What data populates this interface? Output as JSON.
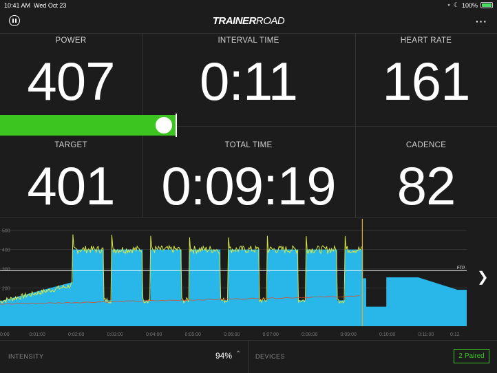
{
  "status_bar": {
    "time": "10:41 AM",
    "date": "Wed Oct 23",
    "battery": "100%"
  },
  "header": {
    "logo_bold": "TRAINER",
    "logo_light": "ROAD"
  },
  "metrics": {
    "power": {
      "label": "POWER",
      "value": "407"
    },
    "interval_time": {
      "label": "INTERVAL TIME",
      "value": "0:11"
    },
    "heart_rate": {
      "label": "HEART RATE",
      "value": "161"
    },
    "target": {
      "label": "TARGET",
      "value": "401"
    },
    "total_time": {
      "label": "TOTAL TIME",
      "value": "0:09:19"
    },
    "cadence": {
      "label": "CADENCE",
      "value": "82"
    }
  },
  "chart_data": {
    "type": "area",
    "y_ticks": [
      "500",
      "400",
      "300",
      "200"
    ],
    "x_ticks": [
      "0:00",
      "0:01:00",
      "0:02:00",
      "0:03:00",
      "0:04:00",
      "0:05:00",
      "0:06:00",
      "0:07:00",
      "0:08:00",
      "0:09:00",
      "0:10:00",
      "0:11:00",
      "0:12"
    ],
    "ftp_label": "FTP",
    "ftp_value": 290,
    "ylim": [
      0,
      560
    ],
    "xlim": [
      0,
      720
    ],
    "current_time_sec": 559,
    "colors": {
      "target": "#29b6e8",
      "power": "#d8e843",
      "heart_rate": "#d9502b",
      "ftp_line": "#ffffff",
      "cursor": "#e8a91c"
    },
    "target_steps": [
      [
        0,
        130
      ],
      [
        112,
        230
      ],
      [
        112,
        400
      ],
      [
        160,
        400
      ],
      [
        160,
        135
      ],
      [
        172,
        135
      ],
      [
        172,
        400
      ],
      [
        220,
        400
      ],
      [
        220,
        135
      ],
      [
        232,
        135
      ],
      [
        232,
        400
      ],
      [
        280,
        400
      ],
      [
        280,
        135
      ],
      [
        292,
        135
      ],
      [
        292,
        400
      ],
      [
        340,
        400
      ],
      [
        340,
        135
      ],
      [
        352,
        135
      ],
      [
        352,
        400
      ],
      [
        400,
        400
      ],
      [
        400,
        135
      ],
      [
        412,
        135
      ],
      [
        412,
        400
      ],
      [
        460,
        400
      ],
      [
        460,
        135
      ],
      [
        472,
        135
      ],
      [
        472,
        400
      ],
      [
        520,
        400
      ],
      [
        520,
        135
      ],
      [
        532,
        135
      ],
      [
        532,
        400
      ],
      [
        560,
        400
      ],
      [
        560,
        250
      ],
      [
        565,
        250
      ],
      [
        565,
        102
      ],
      [
        596,
        102
      ],
      [
        596,
        255
      ],
      [
        645,
        255
      ],
      [
        706,
        190
      ],
      [
        720,
        190
      ]
    ],
    "interval_starts": [
      112,
      172,
      232,
      292,
      352,
      412,
      472,
      532
    ]
  },
  "footer": {
    "intensity_label": "INTENSITY",
    "intensity_value": "94%",
    "devices_label": "DEVICES",
    "paired_count": "2",
    "paired_label": "Paired"
  }
}
